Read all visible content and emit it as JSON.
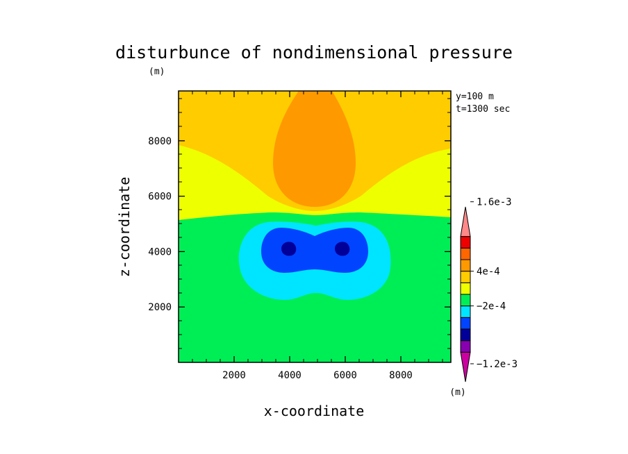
{
  "chart_data": {
    "type": "contour",
    "title": "disturbunce of nondimensional pressure",
    "units_label": "(m)",
    "xlabel": "x-coordinate",
    "ylabel": "z-coordinate",
    "xlim": [
      0,
      9800
    ],
    "ylim": [
      0,
      9800
    ],
    "x_ticks": [
      2000,
      4000,
      6000,
      8000
    ],
    "y_ticks": [
      2000,
      4000,
      6000,
      8000
    ],
    "x_tick_labels": [
      "2000",
      "4000",
      "6000",
      "8000"
    ],
    "y_tick_labels": [
      "2000",
      "4000",
      "6000",
      "8000"
    ],
    "annotations": [
      "y=100 m",
      "t=1300 sec"
    ],
    "colorbar": {
      "unit": "(m)",
      "colors": [
        "#cc00a0",
        "#8800b0",
        "#000099",
        "#0044ff",
        "#00e5ff",
        "#00ee55",
        "#eeff00",
        "#ffcc00",
        "#ff9900",
        "#ff6600",
        "#ee0000",
        "#ff8888"
      ],
      "labels": [
        {
          "text": "1.6e-3",
          "value": 0.0016
        },
        {
          "text": "4e-4",
          "value": 0.0004
        },
        {
          "text": "−2e-4",
          "value": -0.0002
        },
        {
          "text": "−1.2e-3",
          "value": -0.0012
        }
      ]
    }
  }
}
